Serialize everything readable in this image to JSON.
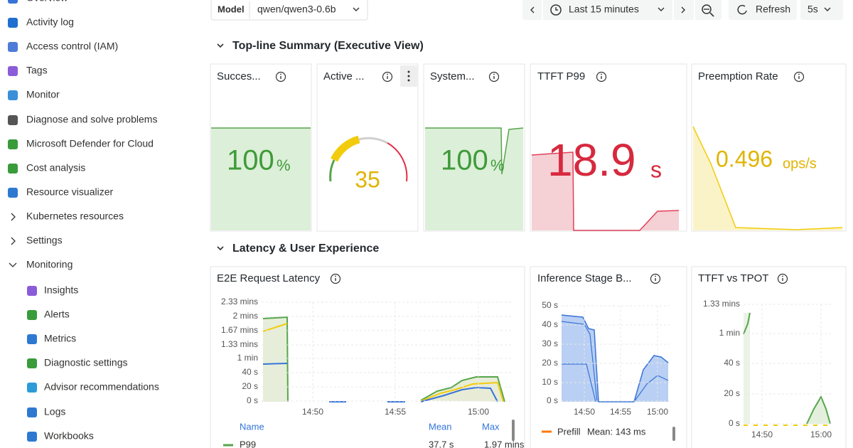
{
  "sidebar": [
    "Overview",
    "Activity log",
    "Access control (IAM)",
    "Tags",
    "Monitor",
    "Diagnose and solve problems",
    "Microsoft Defender for Cloud",
    "Cost analysis",
    "Resource visualizer",
    "Kubernetes resources",
    "Settings",
    "Monitoring",
    "Insights",
    "Alerts",
    "Metrics",
    "Diagnostic settings",
    "Advisor recommendations",
    "Logs",
    "Workbooks"
  ],
  "toolbar": {
    "model_label": "Model",
    "model_value": "qwen/qwen3-0.6b",
    "time_range": "Last 15 minutes",
    "refresh": "Refresh",
    "interval": "5s"
  },
  "sections": [
    "Top-line Summary (Executive View)",
    "Latency & User Experience"
  ],
  "stats": [
    {
      "title": "Succes...",
      "value": 100,
      "unit": "%"
    },
    {
      "title": "Active ...",
      "value": 35
    },
    {
      "title": "System...",
      "value": 100,
      "unit": "%"
    },
    {
      "title": "TTFT P99",
      "value": 18.9,
      "unit": "s"
    },
    {
      "title": "Preemption Rate",
      "value": 0.496,
      "unit": "ops/s"
    }
  ],
  "panels": [
    {
      "title": "E2E Request Latency",
      "yticks": [
        "2.33 mins",
        "2 mins",
        "1.67 mins",
        "1.33 mins",
        "1 min",
        "40 s",
        "20 s",
        "0 s"
      ],
      "xticks": [
        "14:50",
        "14:55",
        "15:00"
      ],
      "legend": {
        "header": [
          "Name",
          "Mean",
          "Max"
        ],
        "rows": [
          [
            "P99",
            "37.7 s",
            "1.97 mins"
          ]
        ]
      }
    },
    {
      "title": "Inference Stage B...",
      "yticks": [
        "50 s",
        "40 s",
        "30 s",
        "20 s",
        "10 s",
        "0 s"
      ],
      "xticks": [
        "14:50",
        "14:55",
        "15:00"
      ],
      "legend": {
        "rows": [
          [
            "Prefill",
            "Mean: 143 ms"
          ]
        ]
      }
    },
    {
      "title": "TTFT vs TPOT",
      "yticks": [
        "1.33 mins",
        "1 min",
        "40 s",
        "20 s",
        "0 s"
      ],
      "xticks": [
        "14:50",
        "15:00"
      ]
    }
  ]
}
